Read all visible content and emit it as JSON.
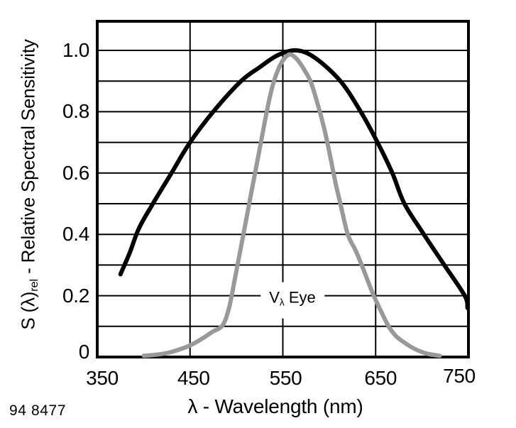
{
  "figure": {
    "note": "94 8477",
    "background": "#ffffff"
  },
  "chart_data": {
    "type": "line",
    "title": "",
    "xlabel": "λ - Wavelength (nm)",
    "ylabel": "S (λ)rel - Relative Spectral Sensitivity",
    "ylabel_parts": {
      "prefix": "S (λ)",
      "sub": "rel",
      "suffix": " - Relative Spectral Sensitivity"
    },
    "xlim": [
      350,
      750
    ],
    "ylim": [
      0,
      1.1
    ],
    "grid": {
      "on": true,
      "x_step_nm": 100,
      "y_step": 0.1
    },
    "x_ticks": [
      350,
      450,
      550,
      650,
      750
    ],
    "y_ticks": [
      {
        "label": "1.0",
        "value": 1.0
      },
      {
        "label": "0.8",
        "value": 0.8
      },
      {
        "label": "0.6",
        "value": 0.6
      },
      {
        "label": "0.4",
        "value": 0.4
      },
      {
        "label": "0.2",
        "value": 0.2
      },
      {
        "label": "0",
        "value": 0.0
      }
    ],
    "annotation": {
      "main": "V",
      "sub": "λ",
      "rest": " Eye",
      "x_nm": 560,
      "y_value": 0.185,
      "refers_to": "eye-curve"
    },
    "series": [
      {
        "name": "detector-spectral-sensitivity",
        "color": "#000000",
        "points": [
          [
            375,
            0.27
          ],
          [
            385,
            0.34
          ],
          [
            395,
            0.42
          ],
          [
            410,
            0.5
          ],
          [
            430,
            0.6
          ],
          [
            450,
            0.7
          ],
          [
            475,
            0.8
          ],
          [
            505,
            0.9
          ],
          [
            525,
            0.945
          ],
          [
            545,
            0.985
          ],
          [
            565,
            1.0
          ],
          [
            585,
            0.975
          ],
          [
            612,
            0.9
          ],
          [
            634,
            0.8
          ],
          [
            652,
            0.7
          ],
          [
            668,
            0.6
          ],
          [
            681,
            0.5
          ],
          [
            702,
            0.4
          ],
          [
            724,
            0.3
          ],
          [
            746,
            0.2
          ],
          [
            749,
            0.16
          ]
        ]
      },
      {
        "name": "eye-curve",
        "label": "Vλ Eye",
        "color": "#999999",
        "points": [
          [
            400,
            0.004
          ],
          [
            412,
            0.007
          ],
          [
            425,
            0.013
          ],
          [
            438,
            0.024
          ],
          [
            450,
            0.038
          ],
          [
            462,
            0.058
          ],
          [
            474,
            0.082
          ],
          [
            485,
            0.103
          ],
          [
            492,
            0.16
          ],
          [
            498,
            0.25
          ],
          [
            504,
            0.345
          ],
          [
            510,
            0.44
          ],
          [
            515,
            0.52
          ],
          [
            521,
            0.615
          ],
          [
            527,
            0.71
          ],
          [
            533,
            0.805
          ],
          [
            539,
            0.885
          ],
          [
            546,
            0.945
          ],
          [
            552,
            0.975
          ],
          [
            558,
            0.987
          ],
          [
            565,
            0.972
          ],
          [
            572,
            0.942
          ],
          [
            580,
            0.898
          ],
          [
            588,
            0.82
          ],
          [
            595,
            0.74
          ],
          [
            601,
            0.655
          ],
          [
            607,
            0.565
          ],
          [
            612,
            0.5
          ],
          [
            620,
            0.4
          ],
          [
            628,
            0.35
          ],
          [
            635,
            0.3
          ],
          [
            642,
            0.245
          ],
          [
            648,
            0.2
          ],
          [
            656,
            0.148
          ],
          [
            664,
            0.1
          ],
          [
            672,
            0.068
          ],
          [
            681,
            0.047
          ],
          [
            691,
            0.028
          ],
          [
            701,
            0.015
          ],
          [
            710,
            0.008
          ],
          [
            719,
            0.004
          ]
        ]
      }
    ]
  }
}
